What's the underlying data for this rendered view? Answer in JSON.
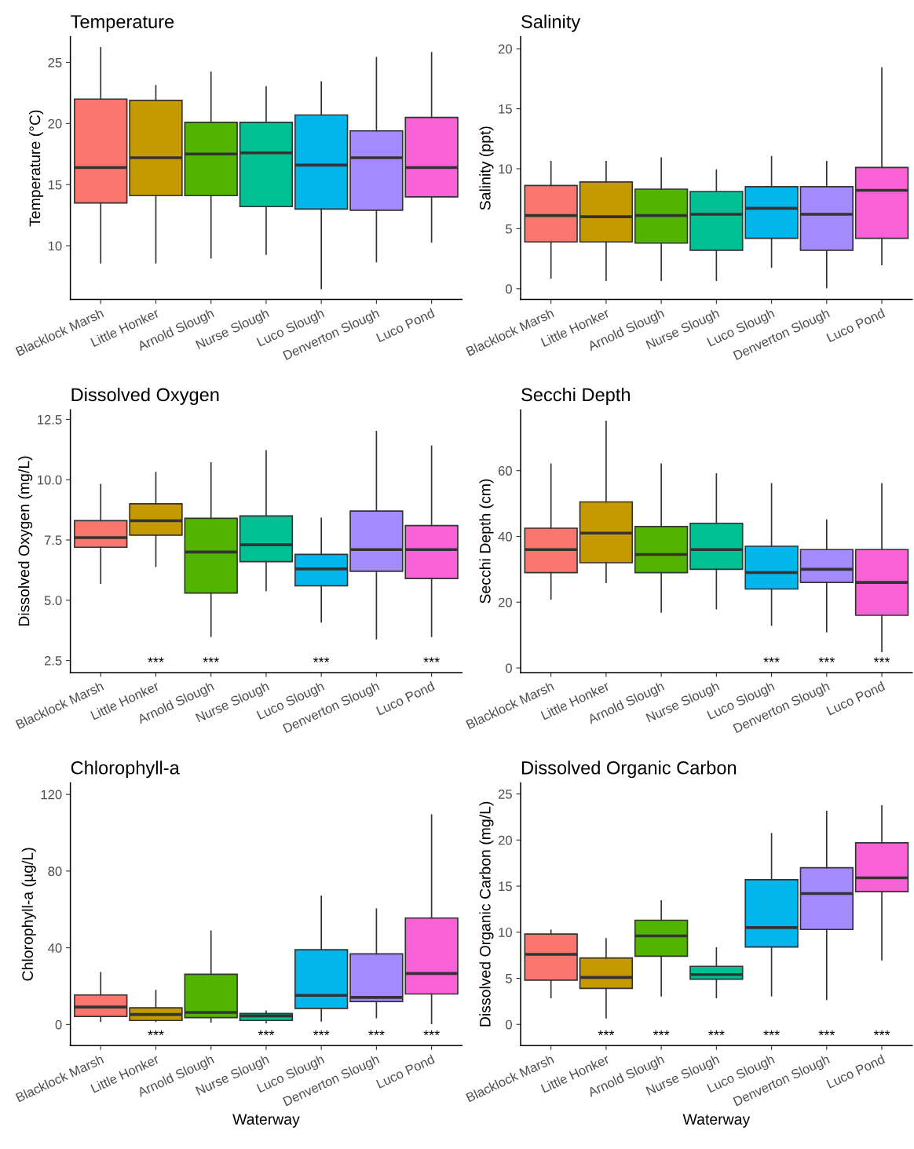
{
  "chart_data": [
    {
      "type": "box",
      "title": "Temperature",
      "ylabel": "Temperature (°C)",
      "categories": [
        "Blacklock Marsh",
        "Little Honker",
        "Arnold Slough",
        "Nurse Slough",
        "Luco Slough",
        "Denverton Slough",
        "Luco Pond"
      ],
      "colors": [
        "#f8766d",
        "#c49a00",
        "#53b400",
        "#00c094",
        "#00b6eb",
        "#a58aff",
        "#fb61d7"
      ],
      "boxes": [
        {
          "low": 8.6,
          "q1": 13.5,
          "median": 16.4,
          "q3": 22.0,
          "high": 26.2
        },
        {
          "low": 8.6,
          "q1": 14.1,
          "median": 17.2,
          "q3": 21.9,
          "high": 23.1
        },
        {
          "low": 9.0,
          "q1": 14.1,
          "median": 17.5,
          "q3": 20.1,
          "high": 24.2
        },
        {
          "low": 9.3,
          "q1": 13.2,
          "median": 17.6,
          "q3": 20.1,
          "high": 23.0
        },
        {
          "low": 6.5,
          "q1": 13.0,
          "median": 16.6,
          "q3": 20.7,
          "high": 23.4
        },
        {
          "low": 8.7,
          "q1": 12.9,
          "median": 17.2,
          "q3": 19.4,
          "high": 25.4
        },
        {
          "low": 10.3,
          "q1": 14.0,
          "median": 16.4,
          "q3": 20.5,
          "high": 25.8
        }
      ],
      "ylim": [
        5.6,
        27.1
      ],
      "yticks": [
        10,
        15,
        20,
        25
      ],
      "grid": false,
      "legend": false
    },
    {
      "type": "box",
      "title": "Salinity",
      "ylabel": "Salinity (ppt)",
      "categories": [
        "Blacklock Marsh",
        "Little Honker",
        "Arnold Slough",
        "Nurse Slough",
        "Luco Slough",
        "Denverton Slough",
        "Luco Pond"
      ],
      "colors": [
        "#f8766d",
        "#c49a00",
        "#53b400",
        "#00c094",
        "#00b6eb",
        "#a58aff",
        "#fb61d7"
      ],
      "boxes": [
        {
          "low": 0.9,
          "q1": 3.9,
          "median": 6.1,
          "q3": 8.6,
          "high": 10.6
        },
        {
          "low": 0.7,
          "q1": 3.9,
          "median": 6.0,
          "q3": 8.9,
          "high": 10.6
        },
        {
          "low": 0.7,
          "q1": 3.8,
          "median": 6.1,
          "q3": 8.3,
          "high": 10.9
        },
        {
          "low": 0.7,
          "q1": 3.2,
          "median": 6.2,
          "q3": 8.1,
          "high": 9.9
        },
        {
          "low": 1.8,
          "q1": 4.2,
          "median": 6.7,
          "q3": 8.5,
          "high": 11.0
        },
        {
          "low": 0.1,
          "q1": 3.2,
          "median": 6.2,
          "q3": 8.5,
          "high": 10.6
        },
        {
          "low": 2.0,
          "q1": 4.2,
          "median": 8.2,
          "q3": 10.1,
          "high": 18.4
        }
      ],
      "ylim": [
        -0.9,
        21.0
      ],
      "yticks": [
        0,
        5,
        10,
        15,
        20
      ],
      "grid": false,
      "legend": false
    },
    {
      "type": "box",
      "title": "Dissolved Oxygen",
      "ylabel": "Dissolved Oxygen (mg/L)",
      "categories": [
        "Blacklock Marsh",
        "Little Honker",
        "Arnold Slough",
        "Nurse Slough",
        "Luco Slough",
        "Denverton Slough",
        "Luco Pond"
      ],
      "colors": [
        "#f8766d",
        "#c49a00",
        "#53b400",
        "#00c094",
        "#00b6eb",
        "#a58aff",
        "#fb61d7"
      ],
      "boxes": [
        {
          "low": 5.7,
          "q1": 7.2,
          "median": 7.6,
          "q3": 8.3,
          "high": 9.8
        },
        {
          "low": 6.4,
          "q1": 7.7,
          "median": 8.3,
          "q3": 9.0,
          "high": 10.3
        },
        {
          "low": 3.5,
          "q1": 5.3,
          "median": 7.0,
          "q3": 8.4,
          "high": 10.7
        },
        {
          "low": 5.4,
          "q1": 6.6,
          "median": 7.3,
          "q3": 8.5,
          "high": 11.2
        },
        {
          "low": 4.1,
          "q1": 5.6,
          "median": 6.3,
          "q3": 6.9,
          "high": 8.4
        },
        {
          "low": 3.4,
          "q1": 6.2,
          "median": 7.1,
          "q3": 8.7,
          "high": 12.0
        },
        {
          "low": 3.5,
          "q1": 5.9,
          "median": 7.1,
          "q3": 8.1,
          "high": 11.4
        }
      ],
      "ylim": [
        2.0,
        12.9
      ],
      "yticks": [
        2.5,
        {
          "value": 5,
          "label": "5.0"
        },
        7.5,
        {
          "value": 10,
          "label": "10.0"
        },
        12.5
      ],
      "grid": false,
      "legend": false,
      "annotations": [
        null,
        "***",
        "***",
        null,
        "***",
        null,
        "***"
      ]
    },
    {
      "type": "box",
      "title": "Secchi Depth",
      "ylabel": "Secchi Depth (cm)",
      "categories": [
        "Blacklock Marsh",
        "Little Honker",
        "Arnold Slough",
        "Nurse Slough",
        "Luco Slough",
        "Denverton Slough",
        "Luco Pond"
      ],
      "colors": [
        "#f8766d",
        "#c49a00",
        "#53b400",
        "#00c094",
        "#00b6eb",
        "#a58aff",
        "#fb61d7"
      ],
      "boxes": [
        {
          "low": 21,
          "q1": 29,
          "median": 36,
          "q3": 42.5,
          "high": 62
        },
        {
          "low": 26,
          "q1": 32,
          "median": 41,
          "q3": 50.5,
          "high": 75
        },
        {
          "low": 17,
          "q1": 29,
          "median": 34.5,
          "q3": 43,
          "high": 62
        },
        {
          "low": 18,
          "q1": 30,
          "median": 36,
          "q3": 44,
          "high": 59
        },
        {
          "low": 13,
          "q1": 24,
          "median": 29,
          "q3": 37,
          "high": 56
        },
        {
          "low": 11,
          "q1": 26,
          "median": 30,
          "q3": 36,
          "high": 45
        },
        {
          "low": 5,
          "q1": 16,
          "median": 26,
          "q3": 36,
          "high": 56
        }
      ],
      "ylim": [
        -1.4,
        78.5
      ],
      "yticks": [
        0,
        20,
        40,
        60
      ],
      "grid": false,
      "legend": false,
      "annotations": [
        null,
        null,
        null,
        null,
        "***",
        "***",
        "***"
      ]
    },
    {
      "type": "box",
      "title": "Chlorophyll-a",
      "ylabel": "Chlorophyll-a (µg/L)",
      "xlabel": "Waterway",
      "categories": [
        "Blacklock Marsh",
        "Little Honker",
        "Arnold Slough",
        "Nurse Slough",
        "Luco Slough",
        "Denverton Slough",
        "Luco Pond"
      ],
      "colors": [
        "#f8766d",
        "#c49a00",
        "#53b400",
        "#00c094",
        "#00b6eb",
        "#a58aff",
        "#fb61d7"
      ],
      "boxes": [
        {
          "low": 1.6,
          "q1": 4.2,
          "median": 9.1,
          "q3": 15.4,
          "high": 27
        },
        {
          "low": 1.6,
          "q1": 2.1,
          "median": 5.2,
          "q3": 8.7,
          "high": 17.7
        },
        {
          "low": 1.3,
          "q1": 3.6,
          "median": 6.3,
          "q3": 26.2,
          "high": 48.7
        },
        {
          "low": 1.0,
          "q1": 2.1,
          "median": 4.5,
          "q3": 5.7,
          "high": 7.0
        },
        {
          "low": 1.8,
          "q1": 8.4,
          "median": 15.2,
          "q3": 39,
          "high": 66.9
        },
        {
          "low": 3.6,
          "q1": 12,
          "median": 14.1,
          "q3": 36.8,
          "high": 60.2
        },
        {
          "low": 0.5,
          "q1": 15.9,
          "median": 26.6,
          "q3": 55.5,
          "high": 109.3
        }
      ],
      "ylim": [
        -11,
        126
      ],
      "yticks": [
        0,
        40,
        80,
        120
      ],
      "grid": false,
      "legend": false,
      "annotations": [
        null,
        "***",
        null,
        "***",
        "***",
        "***",
        "***"
      ]
    },
    {
      "type": "box",
      "title": "Dissolved Organic Carbon",
      "ylabel": "Dissolved Organic Carbon (mg/L)",
      "xlabel": "Waterway",
      "categories": [
        "Blacklock Marsh",
        "Little Honker",
        "Arnold Slough",
        "Nurse Slough",
        "Luco Slough",
        "Denverton Slough",
        "Luco Pond"
      ],
      "colors": [
        "#f8766d",
        "#c49a00",
        "#53b400",
        "#00c094",
        "#00b6eb",
        "#a58aff",
        "#fb61d7"
      ],
      "boxes": [
        {
          "low": 2.9,
          "q1": 4.8,
          "median": 7.6,
          "q3": 9.8,
          "high": 10.2
        },
        {
          "low": 0.7,
          "q1": 3.9,
          "median": 5.1,
          "q3": 7.2,
          "high": 9.3
        },
        {
          "low": 3.1,
          "q1": 7.4,
          "median": 9.6,
          "q3": 11.3,
          "high": 13.4
        },
        {
          "low": 2.9,
          "q1": 4.9,
          "median": 5.4,
          "q3": 6.3,
          "high": 8.3
        },
        {
          "low": 3.1,
          "q1": 8.4,
          "median": 10.5,
          "q3": 15.7,
          "high": 20.7
        },
        {
          "low": 2.7,
          "q1": 10.3,
          "median": 14.2,
          "q3": 17.0,
          "high": 23.1
        },
        {
          "low": 7.0,
          "q1": 14.4,
          "median": 15.9,
          "q3": 19.7,
          "high": 23.7
        }
      ],
      "ylim": [
        -2.3,
        26.2
      ],
      "yticks": [
        0,
        5,
        10,
        15,
        20,
        25
      ],
      "grid": false,
      "legend": false,
      "annotations": [
        null,
        "***",
        "***",
        "***",
        "***",
        "***",
        "***"
      ]
    }
  ]
}
